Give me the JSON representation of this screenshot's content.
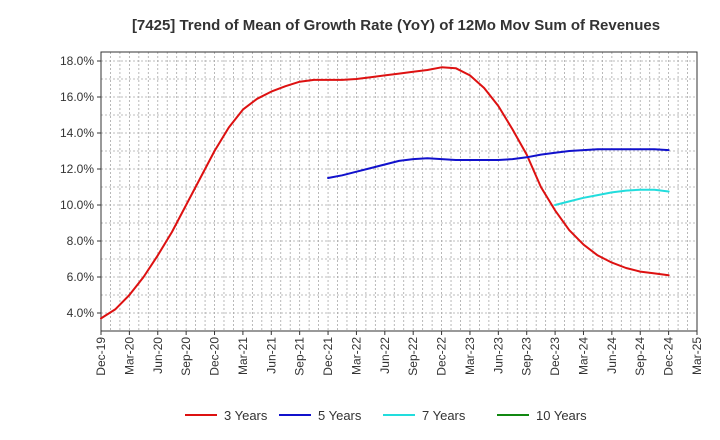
{
  "chart_data": {
    "type": "line",
    "title": "[7425]  Trend of Mean of Growth Rate (YoY) of 12Mo Mov Sum of Revenues",
    "xlabel": "",
    "ylabel": "",
    "ylim": [
      3.0,
      18.5
    ],
    "y_ticks": [
      4.0,
      6.0,
      8.0,
      10.0,
      12.0,
      14.0,
      16.0,
      18.0
    ],
    "y_tick_labels": [
      "4.0%",
      "6.0%",
      "8.0%",
      "10.0%",
      "12.0%",
      "14.0%",
      "16.0%",
      "18.0%"
    ],
    "x_tick_labels": [
      "Dec-19",
      "Mar-20",
      "Jun-20",
      "Sep-20",
      "Dec-20",
      "Mar-21",
      "Jun-21",
      "Sep-21",
      "Dec-21",
      "Mar-22",
      "Jun-22",
      "Sep-22",
      "Dec-22",
      "Mar-23",
      "Jun-23",
      "Sep-23",
      "Dec-23",
      "Mar-24",
      "Jun-24",
      "Sep-24",
      "Dec-24",
      "Mar-25"
    ],
    "x_unit": "quarter index from Dec-19",
    "grid": true,
    "legend_position": "bottom",
    "series": [
      {
        "name": "3 Years",
        "color": "#dd1111",
        "points": [
          [
            0,
            3.7
          ],
          [
            0.5,
            4.2
          ],
          [
            1,
            5.0
          ],
          [
            1.5,
            6.0
          ],
          [
            2,
            7.2
          ],
          [
            2.5,
            8.5
          ],
          [
            3,
            10.0
          ],
          [
            3.5,
            11.5
          ],
          [
            4,
            13.0
          ],
          [
            4.5,
            14.3
          ],
          [
            5,
            15.3
          ],
          [
            5.5,
            15.9
          ],
          [
            6,
            16.3
          ],
          [
            6.5,
            16.6
          ],
          [
            7,
            16.85
          ],
          [
            7.5,
            16.95
          ],
          [
            8,
            16.95
          ],
          [
            8.5,
            16.95
          ],
          [
            9,
            17.0
          ],
          [
            9.5,
            17.1
          ],
          [
            10,
            17.2
          ],
          [
            10.5,
            17.3
          ],
          [
            11,
            17.4
          ],
          [
            11.5,
            17.5
          ],
          [
            12,
            17.65
          ],
          [
            12.5,
            17.6
          ],
          [
            13,
            17.2
          ],
          [
            13.5,
            16.5
          ],
          [
            14,
            15.5
          ],
          [
            14.5,
            14.2
          ],
          [
            15,
            12.8
          ],
          [
            15.5,
            11.0
          ],
          [
            16,
            9.7
          ],
          [
            16.5,
            8.6
          ],
          [
            17,
            7.8
          ],
          [
            17.5,
            7.2
          ],
          [
            18,
            6.8
          ],
          [
            18.5,
            6.5
          ],
          [
            19,
            6.3
          ],
          [
            19.5,
            6.2
          ],
          [
            20,
            6.1
          ]
        ]
      },
      {
        "name": "5 Years",
        "color": "#1111cc",
        "points": [
          [
            8,
            11.5
          ],
          [
            8.5,
            11.65
          ],
          [
            9,
            11.85
          ],
          [
            9.5,
            12.05
          ],
          [
            10,
            12.25
          ],
          [
            10.5,
            12.45
          ],
          [
            11,
            12.55
          ],
          [
            11.5,
            12.6
          ],
          [
            12,
            12.55
          ],
          [
            12.5,
            12.5
          ],
          [
            13,
            12.5
          ],
          [
            13.5,
            12.5
          ],
          [
            14,
            12.5
          ],
          [
            14.5,
            12.55
          ],
          [
            15,
            12.65
          ],
          [
            15.5,
            12.8
          ],
          [
            16,
            12.9
          ],
          [
            16.5,
            13.0
          ],
          [
            17,
            13.05
          ],
          [
            17.5,
            13.1
          ],
          [
            18,
            13.1
          ],
          [
            18.5,
            13.1
          ],
          [
            19,
            13.1
          ],
          [
            19.5,
            13.1
          ],
          [
            20,
            13.05
          ]
        ]
      },
      {
        "name": "7 Years",
        "color": "#22dddd",
        "points": [
          [
            16,
            10.0
          ],
          [
            16.5,
            10.2
          ],
          [
            17,
            10.4
          ],
          [
            17.5,
            10.55
          ],
          [
            18,
            10.7
          ],
          [
            18.5,
            10.8
          ],
          [
            19,
            10.85
          ],
          [
            19.5,
            10.85
          ],
          [
            20,
            10.75
          ]
        ]
      },
      {
        "name": "10 Years",
        "color": "#118811",
        "points": []
      }
    ]
  }
}
